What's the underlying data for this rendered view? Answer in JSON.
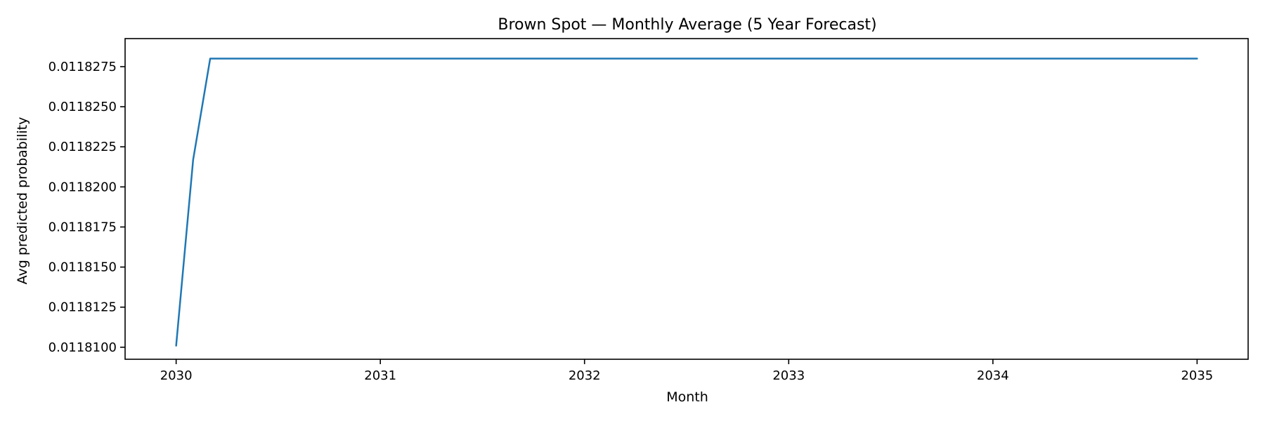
{
  "chart_data": {
    "type": "line",
    "title": "Brown Spot — Monthly Average (5 Year Forecast)",
    "xlabel": "Month",
    "ylabel": "Avg predicted probability",
    "xlim": [
      2029.75,
      2035.25
    ],
    "ylim": [
      0.01180925,
      0.01182925
    ],
    "grid": false,
    "legend": false,
    "line_color": "#1f77b4",
    "x_ticks": [
      2030,
      2031,
      2032,
      2033,
      2034,
      2035
    ],
    "x_tick_labels": [
      "2030",
      "2031",
      "2032",
      "2033",
      "2034",
      "2035"
    ],
    "y_ticks": [
      0.01181,
      0.0118125,
      0.011815,
      0.0118175,
      0.01182,
      0.0118225,
      0.011825,
      0.0118275
    ],
    "y_tick_labels": [
      "0.0118100",
      "0.0118125",
      "0.0118150",
      "0.0118175",
      "0.0118200",
      "0.0118225",
      "0.0118250",
      "0.0118275"
    ],
    "series": [
      {
        "x": [
          2030.0,
          2030.0833,
          2030.1667,
          2035.0
        ],
        "y": [
          0.0118101,
          0.0118217,
          0.011828,
          0.011828
        ]
      }
    ]
  }
}
